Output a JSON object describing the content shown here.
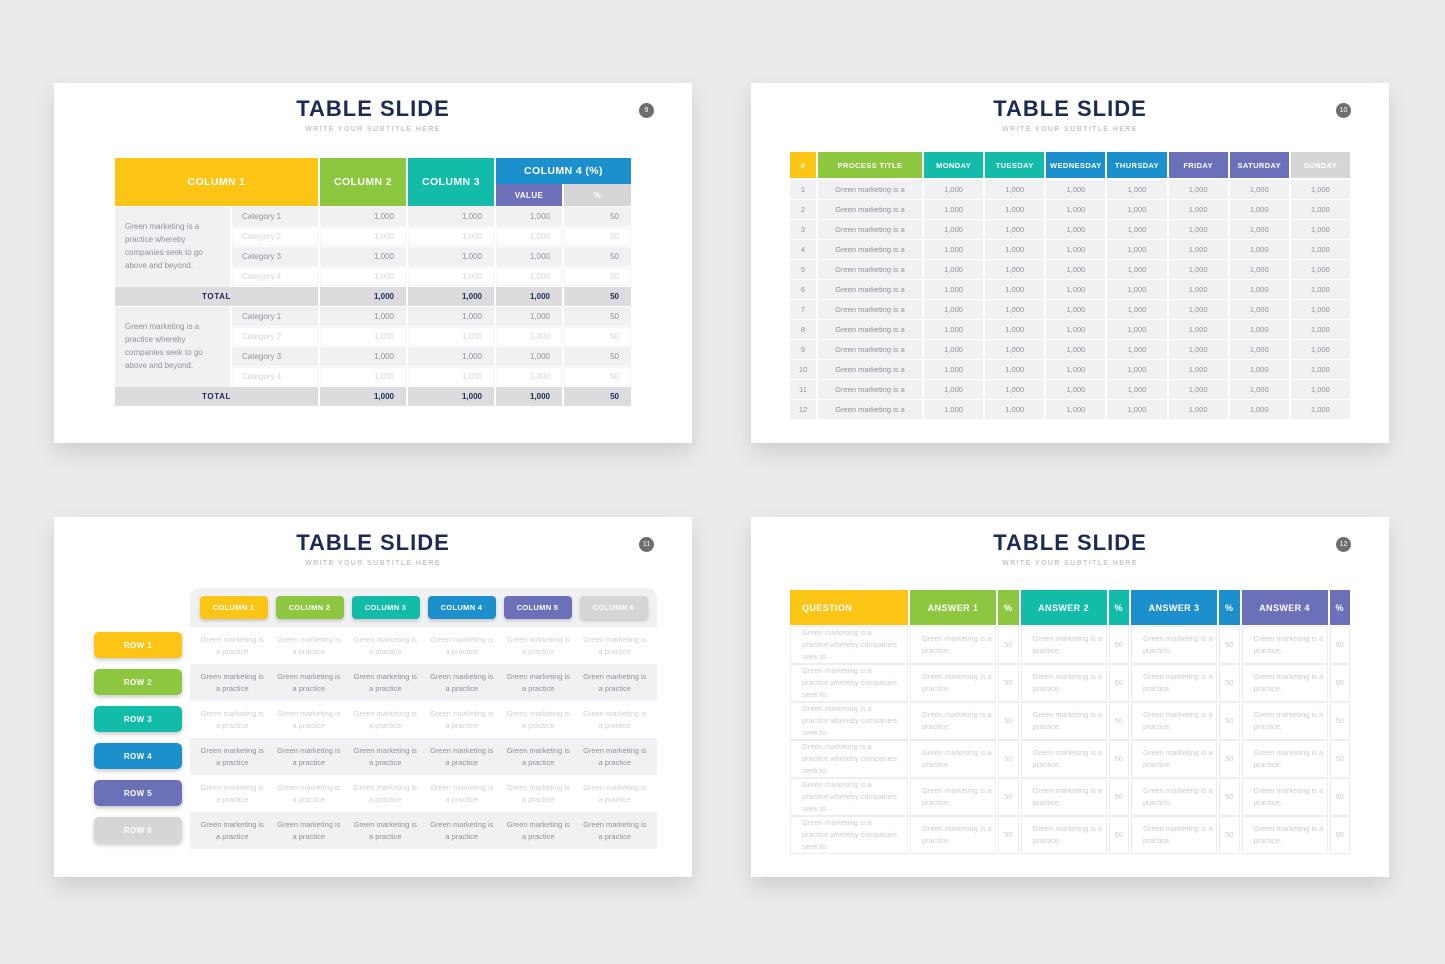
{
  "palette": {
    "yellow": "#FCC515",
    "green": "#8DC63F",
    "teal": "#13BCA9",
    "blue": "#1B90CC",
    "purple": "#6B70B8",
    "gray": "#D6D6D9",
    "navy_title": "#1D2A55",
    "page_background": "#EBEBEC",
    "row_gray": "#F1F1F4",
    "total_row_gray": "#DCDCDF"
  },
  "slides": {
    "s1": {
      "title": "TABLE SLIDE",
      "subtitle": "WRITE YOUR SUBTITLE HERE",
      "page_number": "9",
      "table": {
        "columns": [
          {
            "label": "COLUMN 1",
            "color": "yellow"
          },
          {
            "label": "COLUMN 2",
            "color": "green"
          },
          {
            "label": "COLUMN 3",
            "color": "teal"
          }
        ],
        "column4": {
          "label": "COLUMN 4 (%)",
          "color": "blue",
          "sub_columns": [
            {
              "label": "VALUE",
              "color": "purple"
            },
            {
              "label": "%",
              "color": "gray"
            }
          ]
        },
        "groups": [
          {
            "description": "Green marketing is a practice whereby companies seek to go above and beyond.",
            "rows": [
              {
                "category": "Category 1",
                "col2": "1,000",
                "col3": "1,000",
                "value": "1,000",
                "pct": "50",
                "tone": "normal"
              },
              {
                "category": "Category 2",
                "col2": "1,000",
                "col3": "1,000",
                "value": "1,000",
                "pct": "50",
                "tone": "faded"
              },
              {
                "category": "Category 3",
                "col2": "1,000",
                "col3": "1,000",
                "value": "1,000",
                "pct": "50",
                "tone": "normal"
              },
              {
                "category": "Category 4",
                "col2": "1,000",
                "col3": "1,000",
                "value": "1,000",
                "pct": "50",
                "tone": "faded"
              }
            ],
            "total": {
              "label": "TOTAL",
              "col2": "1,000",
              "col3": "1,000",
              "value": "1,000",
              "pct": "50"
            }
          },
          {
            "description": "Green marketing is a practice whereby companies seek to go above and beyond.",
            "rows": [
              {
                "category": "Category 1",
                "col2": "1,000",
                "col3": "1,000",
                "value": "1,000",
                "pct": "50",
                "tone": "normal"
              },
              {
                "category": "Category 2",
                "col2": "1,000",
                "col3": "1,000",
                "value": "1,000",
                "pct": "50",
                "tone": "faded"
              },
              {
                "category": "Category 3",
                "col2": "1,000",
                "col3": "1,000",
                "value": "1,000",
                "pct": "50",
                "tone": "normal"
              },
              {
                "category": "Category 4",
                "col2": "1,000",
                "col3": "1,000",
                "value": "1,000",
                "pct": "50",
                "tone": "faded"
              }
            ],
            "total": {
              "label": "TOTAL",
              "col2": "1,000",
              "col3": "1,000",
              "value": "1,000",
              "pct": "50"
            }
          }
        ]
      }
    },
    "s2": {
      "title": "TABLE SLIDE",
      "subtitle": "WRITE YOUR SUBTITLE HERE",
      "page_number": "10",
      "table": {
        "columns": [
          {
            "label": "#",
            "color": "yellow",
            "kind": "num"
          },
          {
            "label": "PROCESS TITLE",
            "color": "green",
            "kind": "title"
          },
          {
            "label": "MONDAY",
            "color": "teal",
            "kind": "day"
          },
          {
            "label": "TUESDAY",
            "color": "teal",
            "kind": "day"
          },
          {
            "label": "WEDNESDAY",
            "color": "blue",
            "kind": "day"
          },
          {
            "label": "THURSDAY",
            "color": "blue",
            "kind": "day"
          },
          {
            "label": "FRIDAY",
            "color": "purple",
            "kind": "day"
          },
          {
            "label": "SATURDAY",
            "color": "purple",
            "kind": "day"
          },
          {
            "label": "SUNDAY",
            "color": "gray",
            "kind": "day"
          }
        ],
        "rows": [
          {
            "num": "1",
            "title": "Green marketing is a",
            "values": [
              "1,000",
              "1,000",
              "1,000",
              "1,000",
              "1,000",
              "1,000",
              "1,000"
            ]
          },
          {
            "num": "2",
            "title": "Green marketing is a",
            "values": [
              "1,000",
              "1,000",
              "1,000",
              "1,000",
              "1,000",
              "1,000",
              "1,000"
            ]
          },
          {
            "num": "3",
            "title": "Green marketing is a",
            "values": [
              "1,000",
              "1,000",
              "1,000",
              "1,000",
              "1,000",
              "1,000",
              "1,000"
            ]
          },
          {
            "num": "4",
            "title": "Green marketing is a",
            "values": [
              "1,000",
              "1,000",
              "1,000",
              "1,000",
              "1,000",
              "1,000",
              "1,000"
            ]
          },
          {
            "num": "5",
            "title": "Green marketing is a",
            "values": [
              "1,000",
              "1,000",
              "1,000",
              "1,000",
              "1,000",
              "1,000",
              "1,000"
            ]
          },
          {
            "num": "6",
            "title": "Green marketing is a",
            "values": [
              "1,000",
              "1,000",
              "1,000",
              "1,000",
              "1,000",
              "1,000",
              "1,000"
            ]
          },
          {
            "num": "7",
            "title": "Green marketing is a",
            "values": [
              "1,000",
              "1,000",
              "1,000",
              "1,000",
              "1,000",
              "1,000",
              "1,000"
            ]
          },
          {
            "num": "8",
            "title": "Green marketing is a",
            "values": [
              "1,000",
              "1,000",
              "1,000",
              "1,000",
              "1,000",
              "1,000",
              "1,000"
            ]
          },
          {
            "num": "9",
            "title": "Green marketing is a",
            "values": [
              "1,000",
              "1,000",
              "1,000",
              "1,000",
              "1,000",
              "1,000",
              "1,000"
            ]
          },
          {
            "num": "10",
            "title": "Green marketing is a",
            "values": [
              "1,000",
              "1,000",
              "1,000",
              "1,000",
              "1,000",
              "1,000",
              "1,000"
            ]
          },
          {
            "num": "11",
            "title": "Green marketing is a",
            "values": [
              "1,000",
              "1,000",
              "1,000",
              "1,000",
              "1,000",
              "1,000",
              "1,000"
            ]
          },
          {
            "num": "12",
            "title": "Green marketing is a",
            "values": [
              "1,000",
              "1,000",
              "1,000",
              "1,000",
              "1,000",
              "1,000",
              "1,000"
            ]
          }
        ]
      }
    },
    "s3": {
      "title": "TABLE SLIDE",
      "subtitle": "WRITE YOUR SUBTITLE HERE",
      "page_number": "11",
      "columns": [
        {
          "label": "COLUMN 1",
          "color": "yellow"
        },
        {
          "label": "COLUMN 2",
          "color": "green"
        },
        {
          "label": "COLUMN 3",
          "color": "teal"
        },
        {
          "label": "COLUMN 4",
          "color": "blue"
        },
        {
          "label": "COLUMN 5",
          "color": "purple"
        },
        {
          "label": "COLUMN 6",
          "color": "gray"
        }
      ],
      "rows": [
        {
          "label": "ROW 1",
          "color": "yellow",
          "tone": "faded",
          "cells": [
            "Green marketing is a practice",
            "Green marketing is a practice",
            "Green marketing is a practice",
            "Green marketing is a practice",
            "Green marketing is a practice",
            "Green marketing is a practice"
          ]
        },
        {
          "label": "ROW 2",
          "color": "green",
          "tone": "normal",
          "cells": [
            "Green marketing is a practice",
            "Green marketing is a practice",
            "Green marketing is a practice",
            "Green marketing is a practice",
            "Green marketing is a practice",
            "Green marketing is a practice"
          ]
        },
        {
          "label": "ROW 3",
          "color": "teal",
          "tone": "faded",
          "cells": [
            "Green marketing is a practice",
            "Green marketing is a practice",
            "Green marketing is a practice",
            "Green marketing is a practice",
            "Green marketing is a practice",
            "Green marketing is a practice"
          ]
        },
        {
          "label": "ROW 4",
          "color": "blue",
          "tone": "normal",
          "cells": [
            "Green marketing is a practice",
            "Green marketing is a practice",
            "Green marketing is a practice",
            "Green marketing is a practice",
            "Green marketing is a practice",
            "Green marketing is a practice"
          ]
        },
        {
          "label": "ROW 5",
          "color": "purple",
          "tone": "faded",
          "cells": [
            "Green marketing is a practice",
            "Green marketing is a practice",
            "Green marketing is a practice",
            "Green marketing is a practice",
            "Green marketing is a practice",
            "Green marketing is a practice"
          ]
        },
        {
          "label": "ROW 6",
          "color": "gray",
          "tone": "normal",
          "cells": [
            "Green marketing is a practice",
            "Green marketing is a practice",
            "Green marketing is a practice",
            "Green marketing is a practice",
            "Green marketing is a practice",
            "Green marketing is a practice"
          ]
        }
      ]
    },
    "s4": {
      "title": "TABLE SLIDE",
      "subtitle": "WRITE YOUR SUBTITLE HERE",
      "page_number": "12",
      "table": {
        "columns": [
          {
            "label": "QUESTION",
            "color": "yellow",
            "kind": "question"
          },
          {
            "label": "ANSWER 1",
            "color": "green",
            "kind": "answer"
          },
          {
            "label": "%",
            "color": "green",
            "kind": "pct"
          },
          {
            "label": "ANSWER 2",
            "color": "teal",
            "kind": "answer"
          },
          {
            "label": "%",
            "color": "teal",
            "kind": "pct"
          },
          {
            "label": "ANSWER 3",
            "color": "blue",
            "kind": "answer"
          },
          {
            "label": "%",
            "color": "blue",
            "kind": "pct"
          },
          {
            "label": "ANSWER 4",
            "color": "purple",
            "kind": "answer"
          },
          {
            "label": "%",
            "color": "purple",
            "kind": "pct"
          }
        ],
        "rows": [
          {
            "question": "Green marketing is a practice whereby companies seek to.",
            "answers": [
              {
                "text": "Green marketing is a practice.",
                "pct": "50"
              },
              {
                "text": "Green marketing is a practice.",
                "pct": "50"
              },
              {
                "text": "Green marketing is a practice.",
                "pct": "50"
              },
              {
                "text": "Green marketing is a practice.",
                "pct": "50"
              }
            ]
          },
          {
            "question": "Green marketing is a practice whereby companies seek to.",
            "answers": [
              {
                "text": "Green marketing is a practice.",
                "pct": "50"
              },
              {
                "text": "Green marketing is a practice.",
                "pct": "50"
              },
              {
                "text": "Green marketing is a practice.",
                "pct": "50"
              },
              {
                "text": "Green marketing is a practice.",
                "pct": "50"
              }
            ]
          },
          {
            "question": "Green marketing is a practice whereby companies seek to.",
            "answers": [
              {
                "text": "Green marketing is a practice.",
                "pct": "50"
              },
              {
                "text": "Green marketing is a practice.",
                "pct": "50"
              },
              {
                "text": "Green marketing is a practice.",
                "pct": "50"
              },
              {
                "text": "Green marketing is a practice.",
                "pct": "50"
              }
            ]
          },
          {
            "question": "Green marketing is a practice whereby companies seek to.",
            "answers": [
              {
                "text": "Green marketing is a practice.",
                "pct": "50"
              },
              {
                "text": "Green marketing is a practice.",
                "pct": "50"
              },
              {
                "text": "Green marketing is a practice.",
                "pct": "50"
              },
              {
                "text": "Green marketing is a practice.",
                "pct": "50"
              }
            ]
          },
          {
            "question": "Green marketing is a practice whereby companies seek to.",
            "answers": [
              {
                "text": "Green marketing is a practice.",
                "pct": "50"
              },
              {
                "text": "Green marketing is a practice.",
                "pct": "50"
              },
              {
                "text": "Green marketing is a practice.",
                "pct": "50"
              },
              {
                "text": "Green marketing is a practice.",
                "pct": "50"
              }
            ]
          },
          {
            "question": "Green marketing is a practice whereby companies seek to.",
            "answers": [
              {
                "text": "Green marketing is a practice.",
                "pct": "50"
              },
              {
                "text": "Green marketing is a practice.",
                "pct": "50"
              },
              {
                "text": "Green marketing is a practice.",
                "pct": "50"
              },
              {
                "text": "Green marketing is a practice.",
                "pct": "50"
              }
            ]
          }
        ]
      }
    }
  }
}
